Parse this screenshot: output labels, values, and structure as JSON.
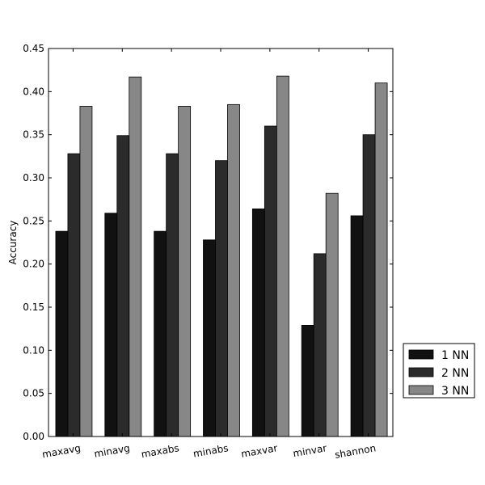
{
  "chart_data": {
    "type": "bar",
    "title": "",
    "xlabel": "",
    "ylabel": "Accuracy",
    "ylim": [
      0,
      0.45
    ],
    "yticks": [
      "0.00",
      "0.05",
      "0.10",
      "0.15",
      "0.20",
      "0.25",
      "0.30",
      "0.35",
      "0.40",
      "0.45"
    ],
    "categories": [
      "maxavg",
      "minavg",
      "maxabs",
      "minabs",
      "maxvar",
      "minvar",
      "shannon"
    ],
    "series": [
      {
        "name": "1 NN",
        "color": "#111111",
        "values": [
          0.238,
          0.259,
          0.238,
          0.228,
          0.264,
          0.129,
          0.256
        ]
      },
      {
        "name": "2 NN",
        "color": "#2b2b2b",
        "values": [
          0.328,
          0.349,
          0.328,
          0.32,
          0.36,
          0.212,
          0.35
        ]
      },
      {
        "name": "3 NN",
        "color": "#878787",
        "values": [
          0.383,
          0.417,
          0.383,
          0.385,
          0.418,
          0.282,
          0.41
        ]
      }
    ],
    "legend": {
      "position": "outside-right-bottom"
    },
    "grid": false
  }
}
